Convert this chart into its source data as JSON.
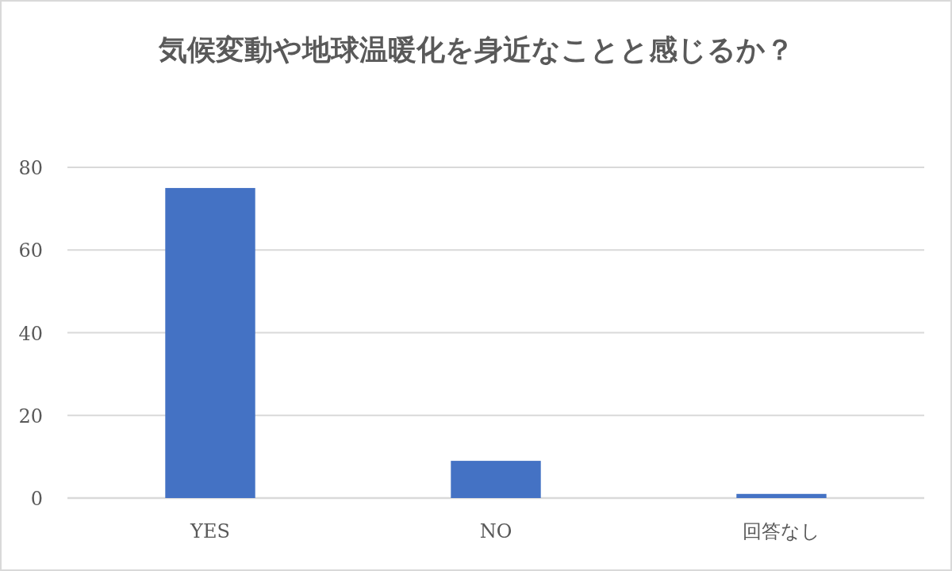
{
  "chart_data": {
    "type": "bar",
    "title": "気候変動や地球温暖化を身近なことと感じるか？",
    "categories": [
      "YES",
      "NO",
      "回答なし"
    ],
    "values": [
      75,
      9,
      1
    ],
    "color": "#4472c4",
    "ylim": [
      0,
      80
    ],
    "yticks": [
      0,
      20,
      40,
      60,
      80
    ],
    "grid": "y"
  }
}
